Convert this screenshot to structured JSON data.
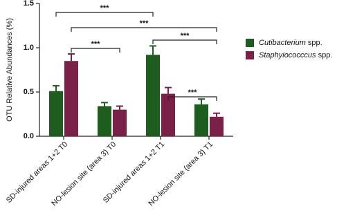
{
  "chart_data": {
    "type": "bar",
    "y_label": "OTU Relative Abundances (%)",
    "categories": [
      "SD-injured areas 1+2 T0",
      "NO-lesion site (area 3) T0",
      "SD-injured areas 1+2 T1",
      "NO-lesion site (area 3) T1"
    ],
    "series": [
      {
        "name": "Cutibacterium spp.",
        "color": "#1d5e1f",
        "values": [
          0.51,
          0.34,
          0.92,
          0.36
        ],
        "errors": [
          0.06,
          0.04,
          0.1,
          0.06
        ]
      },
      {
        "name": "Staphyiococccus spp.",
        "color": "#7b2047",
        "values": [
          0.85,
          0.3,
          0.48,
          0.22
        ],
        "errors": [
          0.08,
          0.04,
          0.07,
          0.04
        ]
      }
    ],
    "ylim": [
      0,
      1.5
    ],
    "yticks": [
      {
        "value": 0,
        "label": "0.0"
      },
      {
        "value": 0.5,
        "label": "0.5"
      },
      {
        "value": 1,
        "label": "1.0"
      },
      {
        "value": 1.5,
        "label": "1.5"
      }
    ],
    "annotations": [
      "***",
      "***",
      "***",
      "***",
      "***"
    ],
    "legend": "right"
  }
}
